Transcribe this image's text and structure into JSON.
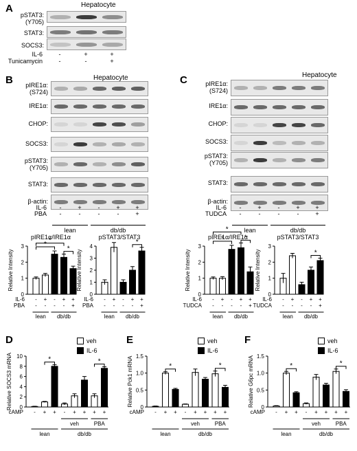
{
  "panels": {
    "A": {
      "letter": "A",
      "title": "Hepatocyte",
      "rows": [
        "pSTAT3:\n(Y705)",
        "STAT3:",
        "SOCS3:"
      ],
      "cond_labels": [
        "IL-6",
        "Tunicamycin"
      ],
      "conds": [
        [
          "-",
          "+",
          "+"
        ],
        [
          "-",
          "-",
          "+"
        ]
      ]
    },
    "B": {
      "letter": "B",
      "title": "Hepatocyte",
      "rows": [
        "pIRE1α:\n(S724)",
        "IRE1α:",
        "CHOP:",
        "SOCS3:",
        "pSTAT3:\n(Y705)",
        "STAT3:",
        "β-actin:"
      ],
      "cond_labels": [
        "IL-6",
        "PBA"
      ],
      "conds": [
        [
          "-",
          "+",
          "-",
          "+",
          "+"
        ],
        [
          "-",
          "-",
          "-",
          "-",
          "+"
        ]
      ],
      "groups": [
        "lean",
        "db/db"
      ]
    },
    "C": {
      "letter": "C",
      "title": "Hepatocyte",
      "rows": [
        "pIRE1α:\n(S724)",
        "IRE1α:",
        "CHOP:",
        "SOCS3:",
        "pSTAT3:\n(Y705)",
        "STAT3:",
        "β-actin:"
      ],
      "cond_labels": [
        "IL-6",
        "TUDCA"
      ],
      "conds": [
        [
          "-",
          "+",
          "-",
          "+",
          "+"
        ],
        [
          "-",
          "-",
          "-",
          "-",
          "+"
        ]
      ],
      "groups": [
        "lean",
        "db/db"
      ]
    },
    "D": {
      "letter": "D"
    },
    "E": {
      "letter": "E"
    },
    "F": {
      "letter": "F"
    }
  },
  "legend": {
    "veh": "veh",
    "il6": "IL-6"
  },
  "chart_data": [
    {
      "id": "B1",
      "type": "bar",
      "title": "pIRE1α/IRE1α",
      "ylabel": "Relative Intensity",
      "ylim": [
        0,
        3
      ],
      "yticks": [
        0,
        1,
        2,
        3
      ],
      "values": [
        1.0,
        1.2,
        2.5,
        2.3,
        1.6
      ],
      "errors": [
        0.08,
        0.1,
        0.2,
        0.2,
        0.15
      ],
      "fills": [
        "w",
        "w",
        "b",
        "b",
        "b"
      ],
      "cond_labels": [
        "IL-6",
        "PBA"
      ],
      "conds": [
        [
          "-",
          "+",
          "-",
          "+",
          "+"
        ],
        [
          "-",
          "-",
          "-",
          "-",
          "+"
        ]
      ],
      "groups": [
        "lean",
        "db/db"
      ],
      "sig": "*"
    },
    {
      "id": "B2",
      "type": "bar",
      "title": "pSTAT3/STAT3",
      "ylabel": "Relative Intensity",
      "ylim": [
        0,
        4
      ],
      "yticks": [
        0,
        1,
        2,
        3,
        4
      ],
      "values": [
        1.0,
        3.9,
        1.0,
        2.0,
        3.6
      ],
      "errors": [
        0.2,
        0.4,
        0.2,
        0.3,
        0.3
      ],
      "fills": [
        "w",
        "w",
        "b",
        "b",
        "b"
      ],
      "cond_labels": [
        "IL-6",
        "PBA"
      ],
      "conds": [
        [
          "-",
          "+",
          "-",
          "+",
          "+"
        ],
        [
          "-",
          "-",
          "-",
          "-",
          "+"
        ]
      ],
      "groups": [
        "lean",
        "db/db"
      ],
      "sig": "*"
    },
    {
      "id": "C1",
      "type": "bar",
      "title": "pIRE1α/IRE1α",
      "ylabel": "Relative Intensity",
      "ylim": [
        0,
        3
      ],
      "yticks": [
        0,
        1,
        2,
        3
      ],
      "values": [
        1.0,
        1.0,
        2.8,
        2.9,
        1.4
      ],
      "errors": [
        0.08,
        0.1,
        0.25,
        0.3,
        0.3
      ],
      "fills": [
        "w",
        "w",
        "b",
        "b",
        "b"
      ],
      "cond_labels": [
        "IL-6",
        "TUDCA"
      ],
      "conds": [
        [
          "-",
          "+",
          "-",
          "+",
          "+"
        ],
        [
          "-",
          "-",
          "-",
          "-",
          "+"
        ]
      ],
      "groups": [
        "lean",
        "db/db"
      ],
      "sig": "*"
    },
    {
      "id": "C2",
      "type": "bar",
      "title": "pSTAT3/STAT3",
      "ylabel": "Relative Intensity",
      "ylim": [
        0,
        3
      ],
      "yticks": [
        0,
        1,
        2,
        3
      ],
      "values": [
        1.0,
        2.4,
        0.6,
        1.5,
        2.1
      ],
      "errors": [
        0.3,
        0.15,
        0.15,
        0.2,
        0.15
      ],
      "fills": [
        "w",
        "w",
        "b",
        "b",
        "b"
      ],
      "cond_labels": [
        "IL-6",
        "TUDCA"
      ],
      "conds": [
        [
          "-",
          "+",
          "-",
          "+",
          "+"
        ],
        [
          "-",
          "-",
          "-",
          "-",
          "+"
        ]
      ],
      "groups": [
        "lean",
        "db/db"
      ],
      "sig": "*"
    },
    {
      "id": "D",
      "type": "bar",
      "ylabel": "Relative SOCS3 mRNA",
      "ylim": [
        0,
        10
      ],
      "yticks": [
        0,
        2,
        4,
        6,
        8,
        10
      ],
      "values": [
        0.1,
        1.0,
        8.0,
        0.6,
        2.2,
        5.3,
        2.2,
        7.6
      ],
      "errors": [
        0.05,
        0.1,
        0.3,
        0.2,
        0.4,
        0.7,
        0.4,
        0.3
      ],
      "fills": [
        "w",
        "w",
        "b",
        "w",
        "w",
        "b",
        "w",
        "b"
      ],
      "cond_labels": [
        "cAMP"
      ],
      "conds": [
        [
          "-",
          "+",
          "+",
          "-",
          "+",
          "+",
          "+",
          "+"
        ]
      ],
      "subgroups": [
        "veh",
        "PBA"
      ],
      "groups": [
        "lean",
        "db/db"
      ],
      "sig": "*"
    },
    {
      "id": "E",
      "type": "bar",
      "ylabel": "Relative Pck1 mRNA",
      "ylim": [
        0,
        1.5
      ],
      "yticks": [
        "0",
        "0.5",
        "1.0",
        "1.5"
      ],
      "values": [
        0.02,
        1.0,
        0.52,
        0.08,
        1.02,
        0.82,
        0.98,
        0.58
      ],
      "errors": [
        0.01,
        0.04,
        0.03,
        0.01,
        0.1,
        0.05,
        0.08,
        0.06
      ],
      "fills": [
        "w",
        "w",
        "b",
        "w",
        "w",
        "b",
        "w",
        "b"
      ],
      "cond_labels": [
        "cAMP"
      ],
      "conds": [
        [
          "-",
          "+",
          "+",
          "-",
          "+",
          "+",
          "+",
          "+"
        ]
      ],
      "subgroups": [
        "veh",
        "PBA"
      ],
      "groups": [
        "lean",
        "db/db"
      ],
      "sig": "*"
    },
    {
      "id": "F",
      "type": "bar",
      "ylabel": "Relative G6pc mRNA",
      "ylim": [
        0,
        1.5
      ],
      "yticks": [
        "0",
        "0.5",
        "1.0",
        "1.5"
      ],
      "values": [
        0.03,
        1.0,
        0.42,
        0.1,
        0.88,
        0.65,
        1.05,
        0.46
      ],
      "errors": [
        0.01,
        0.05,
        0.03,
        0.02,
        0.08,
        0.05,
        0.07,
        0.05
      ],
      "fills": [
        "w",
        "w",
        "b",
        "w",
        "w",
        "b",
        "w",
        "b"
      ],
      "cond_labels": [
        "cAMP"
      ],
      "conds": [
        [
          "-",
          "+",
          "+",
          "-",
          "+",
          "+",
          "+",
          "+"
        ]
      ],
      "subgroups": [
        "veh",
        "PBA"
      ],
      "groups": [
        "lean",
        "db/db"
      ],
      "sig": "*"
    }
  ]
}
